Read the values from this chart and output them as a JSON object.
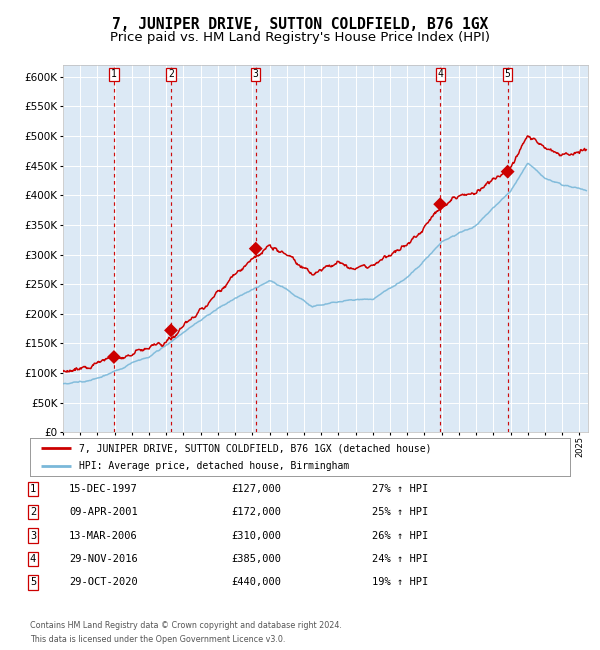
{
  "title": "7, JUNIPER DRIVE, SUTTON COLDFIELD, B76 1GX",
  "subtitle": "Price paid vs. HM Land Registry's House Price Index (HPI)",
  "xlim": [
    1995.0,
    2025.5
  ],
  "ylim": [
    0,
    620000
  ],
  "yticks": [
    0,
    50000,
    100000,
    150000,
    200000,
    250000,
    300000,
    350000,
    400000,
    450000,
    500000,
    550000,
    600000
  ],
  "background_color": "#dce9f5",
  "grid_color": "#ffffff",
  "sales": [
    {
      "year": 1997.958,
      "price": 127000,
      "label": "1"
    },
    {
      "year": 2001.274,
      "price": 172000,
      "label": "2"
    },
    {
      "year": 2006.197,
      "price": 310000,
      "label": "3"
    },
    {
      "year": 2016.913,
      "price": 385000,
      "label": "4"
    },
    {
      "year": 2020.831,
      "price": 440000,
      "label": "5"
    }
  ],
  "table_data": [
    {
      "num": "1",
      "date": "15-DEC-1997",
      "price": "£127,000",
      "change": "27% ↑ HPI"
    },
    {
      "num": "2",
      "date": "09-APR-2001",
      "price": "£172,000",
      "change": "25% ↑ HPI"
    },
    {
      "num": "3",
      "date": "13-MAR-2006",
      "price": "£310,000",
      "change": "26% ↑ HPI"
    },
    {
      "num": "4",
      "date": "29-NOV-2016",
      "price": "£385,000",
      "change": "24% ↑ HPI"
    },
    {
      "num": "5",
      "date": "29-OCT-2020",
      "price": "£440,000",
      "change": "19% ↑ HPI"
    }
  ],
  "legend_line1": "7, JUNIPER DRIVE, SUTTON COLDFIELD, B76 1GX (detached house)",
  "legend_line2": "HPI: Average price, detached house, Birmingham",
  "footer_line1": "Contains HM Land Registry data © Crown copyright and database right 2024.",
  "footer_line2": "This data is licensed under the Open Government Licence v3.0.",
  "price_line_color": "#cc0000",
  "hpi_line_color": "#7ab8d9",
  "sale_marker_color": "#cc0000",
  "dashed_line_color": "#cc0000",
  "title_fontsize": 10.5,
  "subtitle_fontsize": 9.5
}
